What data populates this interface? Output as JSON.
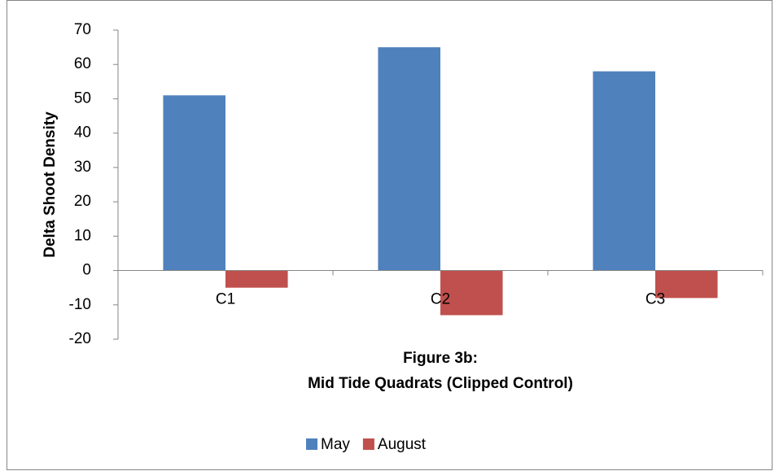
{
  "chart_data": {
    "type": "bar",
    "y_label": "Delta Shoot Density",
    "x_label": [
      "Figure 3b:",
      "Mid Tide Quadrats (Clipped Control)"
    ],
    "categories": [
      "C1",
      "C2",
      "C3"
    ],
    "series": [
      {
        "name": "May",
        "color": "#4f81bd",
        "values": [
          51,
          65,
          58
        ]
      },
      {
        "name": "August",
        "color": "#c0504d",
        "values": [
          -5,
          -13,
          -8
        ]
      }
    ],
    "ylim": [
      -20,
      70
    ],
    "yticks": [
      -20,
      -10,
      0,
      10,
      20,
      30,
      40,
      50,
      60,
      70
    ],
    "legend": "bottom"
  }
}
